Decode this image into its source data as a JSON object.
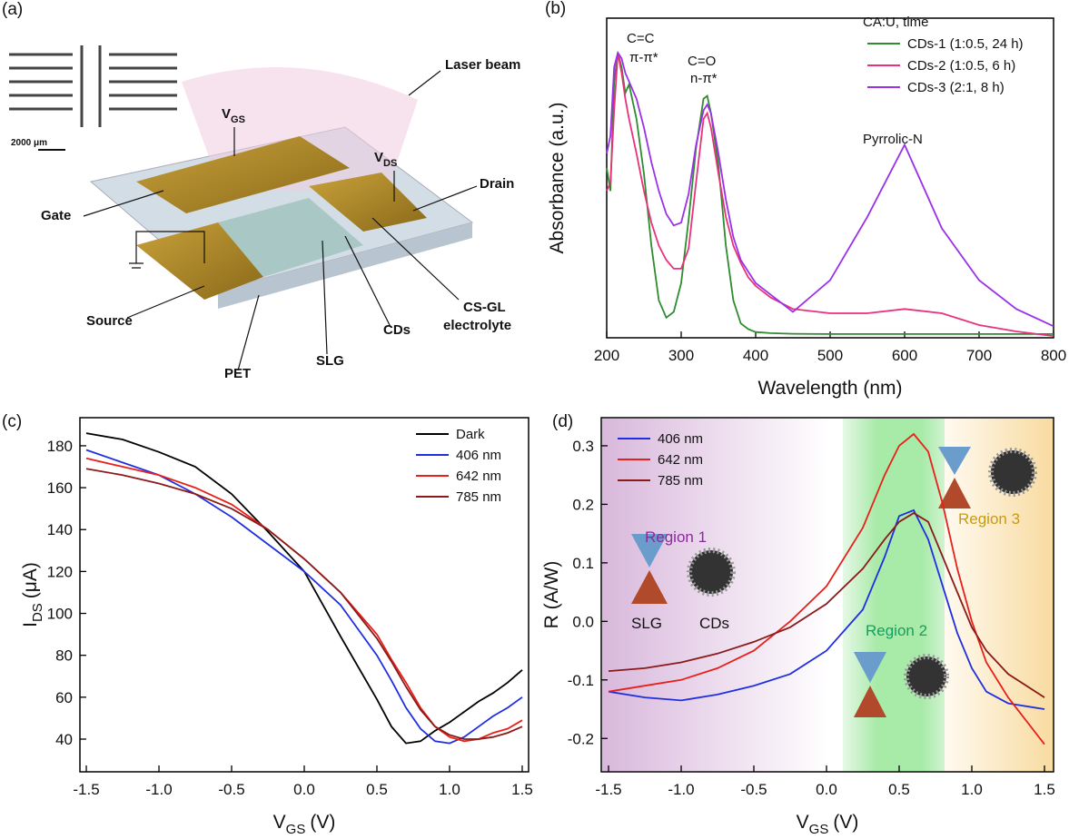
{
  "diagram": {
    "panel_label": "(a)",
    "labels": [
      "Laser beam",
      "Gate",
      "Drain",
      "Source",
      "PET",
      "SLG",
      "CDs",
      "CS-GL",
      "electrolyte",
      "2000 μm"
    ],
    "vgs": [
      "V",
      "GS"
    ],
    "vds": [
      "V",
      "DS"
    ]
  },
  "chart_data": [
    {
      "type": "line",
      "panel_label": "(b)",
      "xlabel": "Wavelength (nm)",
      "ylabel": "Absorbance (a.u.)",
      "legend": "upper right",
      "legend_title": "CA:U, time",
      "annotations": [
        "C=C",
        "π-π*",
        "C=O",
        "n-π*",
        "Pyrrolic-N"
      ],
      "xlim": [
        200,
        800
      ],
      "xticks": [
        200,
        300,
        400,
        500,
        600,
        700,
        800
      ],
      "ylim": [
        0,
        1.11
      ],
      "x": [
        200,
        205,
        210,
        215,
        220,
        225,
        230,
        240,
        250,
        260,
        270,
        280,
        290,
        300,
        310,
        320,
        330,
        335,
        340,
        350,
        360,
        370,
        380,
        390,
        400,
        420,
        450,
        500,
        550,
        600,
        650,
        700,
        750,
        800
      ],
      "series": [
        {
          "name": "CDs-1 (1:0.5, 24 h)",
          "color": "#2e8b2e",
          "values": [
            0.59,
            0.51,
            0.89,
            0.99,
            0.94,
            0.85,
            0.88,
            0.76,
            0.57,
            0.32,
            0.13,
            0.07,
            0.09,
            0.19,
            0.41,
            0.66,
            0.83,
            0.84,
            0.78,
            0.6,
            0.32,
            0.13,
            0.05,
            0.03,
            0.02,
            0.016,
            0.014,
            0.013,
            0.013,
            0.013,
            0.013,
            0.013,
            0.013,
            0.013
          ]
        },
        {
          "name": "CDs-2 (1:0.5, 6 h)",
          "color": "#e8327a",
          "values": [
            0.51,
            0.54,
            0.79,
            0.99,
            0.92,
            0.83,
            0.76,
            0.64,
            0.51,
            0.4,
            0.32,
            0.27,
            0.24,
            0.24,
            0.31,
            0.54,
            0.76,
            0.78,
            0.73,
            0.57,
            0.42,
            0.32,
            0.26,
            0.21,
            0.18,
            0.14,
            0.1,
            0.085,
            0.085,
            0.1,
            0.085,
            0.044,
            0.022,
            0.006
          ]
        },
        {
          "name": "CDs-3 (2:1, 8 h)",
          "color": "#9b30e8",
          "values": [
            0.64,
            0.7,
            0.94,
            0.99,
            0.97,
            0.92,
            0.89,
            0.83,
            0.73,
            0.61,
            0.51,
            0.43,
            0.39,
            0.4,
            0.5,
            0.67,
            0.79,
            0.81,
            0.78,
            0.64,
            0.48,
            0.35,
            0.27,
            0.23,
            0.19,
            0.15,
            0.09,
            0.2,
            0.42,
            0.67,
            0.38,
            0.2,
            0.1,
            0.04
          ]
        }
      ]
    },
    {
      "type": "line",
      "panel_label": "(c)",
      "xlabel": [
        "V",
        "GS",
        "(V)"
      ],
      "ylabel": [
        "I",
        "DS",
        "(μA)"
      ],
      "legend": "upper right",
      "xlim": [
        -1.544,
        1.544
      ],
      "xticks": [
        -1.5,
        {
          "value": -1,
          "label": "-1.0"
        },
        -0.5,
        {
          "value": 0,
          "label": "0.0"
        },
        0.5,
        {
          "value": 1,
          "label": "1.0"
        },
        1.5
      ],
      "ylim": [
        24.4,
        193.4
      ],
      "yticks": [
        40,
        60,
        80,
        100,
        120,
        140,
        160,
        180
      ],
      "x": [
        -1.5,
        -1.25,
        -1,
        -0.75,
        -0.5,
        -0.25,
        0,
        0.25,
        0.5,
        0.6,
        0.7,
        0.8,
        0.9,
        1.0,
        1.1,
        1.2,
        1.3,
        1.4,
        1.5
      ],
      "series": [
        {
          "name": "Dark",
          "color": "#000000",
          "values": [
            186,
            183,
            177,
            170,
            157,
            139,
            120,
            89,
            59,
            46,
            38,
            39,
            44,
            48,
            53,
            58,
            62,
            67,
            73
          ]
        },
        {
          "name": "406 nm",
          "color": "#1f2fe0",
          "values": [
            178,
            172,
            166,
            157,
            146,
            133,
            120,
            104,
            80,
            68,
            55,
            45,
            39,
            38,
            41,
            46,
            51,
            55,
            60
          ]
        },
        {
          "name": "642 nm",
          "color": "#e8201a",
          "values": [
            174,
            170,
            166,
            160,
            152,
            140,
            126,
            110,
            90,
            78,
            67,
            55,
            46,
            41,
            39,
            40,
            43,
            45,
            49
          ]
        },
        {
          "name": "785 nm",
          "color": "#8b1a1a",
          "values": [
            169,
            166,
            162,
            157,
            150,
            140,
            126,
            110,
            88,
            77,
            65,
            54,
            46,
            42,
            40,
            40,
            41,
            43,
            46
          ]
        }
      ]
    },
    {
      "type": "line",
      "panel_label": "(d)",
      "xlabel": [
        "V",
        "GS",
        "(V)"
      ],
      "ylabel": "R (A/W)",
      "legend": "upper left",
      "annotations": [
        "Region 1",
        "Region 2",
        "Region 3",
        "SLG",
        "CDs"
      ],
      "xlim": [
        -1.55,
        1.5625
      ],
      "xticks": [
        -1.5,
        {
          "value": -1,
          "label": "-1.0"
        },
        -0.5,
        {
          "value": 0,
          "label": "0.0"
        },
        0.5,
        {
          "value": 1,
          "label": "1.0"
        },
        1.5
      ],
      "ylim": [
        -0.257,
        0.348
      ],
      "yticks": [
        -0.2,
        -0.1,
        {
          "value": 0,
          "label": "0.0"
        },
        0.1,
        0.2,
        0.3
      ],
      "x": [
        -1.5,
        -1.25,
        -1,
        -0.75,
        -0.5,
        -0.25,
        0,
        0.25,
        0.4,
        0.5,
        0.6,
        0.7,
        0.8,
        0.9,
        1.0,
        1.1,
        1.25,
        1.5
      ],
      "series": [
        {
          "name": "406 nm",
          "color": "#1f2fe0",
          "values": [
            -0.12,
            -0.13,
            -0.135,
            -0.125,
            -0.11,
            -0.09,
            -0.05,
            0.02,
            0.11,
            0.18,
            0.19,
            0.14,
            0.06,
            -0.02,
            -0.08,
            -0.12,
            -0.14,
            -0.15
          ]
        },
        {
          "name": "642 nm",
          "color": "#e8201a",
          "values": [
            -0.12,
            -0.11,
            -0.1,
            -0.08,
            -0.05,
            0.0,
            0.06,
            0.16,
            0.25,
            0.3,
            0.32,
            0.29,
            0.2,
            0.09,
            0.0,
            -0.07,
            -0.13,
            -0.21
          ]
        },
        {
          "name": "785 nm",
          "color": "#8b1a1a",
          "values": [
            -0.085,
            -0.08,
            -0.07,
            -0.055,
            -0.035,
            -0.01,
            0.03,
            0.09,
            0.14,
            0.17,
            0.185,
            0.17,
            0.11,
            0.05,
            -0.01,
            -0.05,
            -0.09,
            -0.13
          ]
        }
      ]
    }
  ]
}
